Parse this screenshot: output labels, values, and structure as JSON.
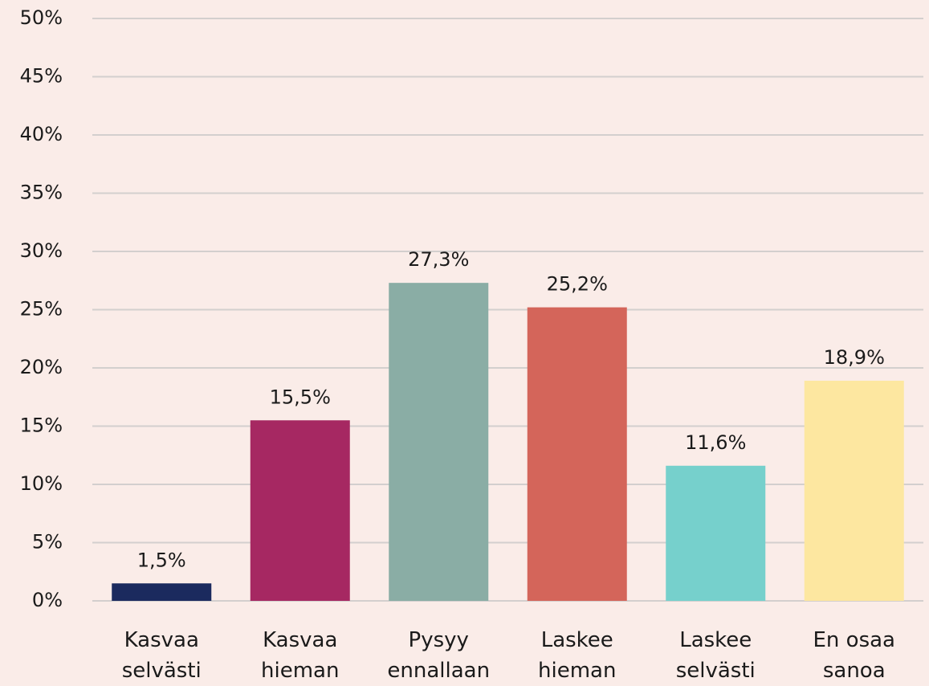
{
  "chart_data": {
    "type": "bar",
    "categories": [
      "Kasvaa selvästi",
      "Kasvaa hieman",
      "Pysyy ennallaan",
      "Laskee hieman",
      "Laskee selvästi",
      "En osaa sanoa"
    ],
    "values": [
      1.5,
      15.5,
      27.3,
      25.2,
      11.6,
      18.9
    ],
    "value_labels": [
      "1,5%",
      "15,5%",
      "27,3%",
      "25,2%",
      "11,6%",
      "18,9%"
    ],
    "colors": [
      "#1b2a5e",
      "#a62862",
      "#8aada5",
      "#d4655a",
      "#76d0cc",
      "#fde7a0"
    ],
    "ylim": [
      0,
      50
    ],
    "yticks": [
      {
        "value": 0,
        "label": "0%"
      },
      {
        "value": 5,
        "label": "5%"
      },
      {
        "value": 10,
        "label": "10%"
      },
      {
        "value": 15,
        "label": "15%"
      },
      {
        "value": 20,
        "label": "20%"
      },
      {
        "value": 25,
        "label": "25%"
      },
      {
        "value": 30,
        "label": "30%"
      },
      {
        "value": 35,
        "label": "35%"
      },
      {
        "value": 40,
        "label": "40%"
      },
      {
        "value": 45,
        "label": "45%"
      },
      {
        "value": 50,
        "label": "50%"
      }
    ],
    "grid": true
  }
}
